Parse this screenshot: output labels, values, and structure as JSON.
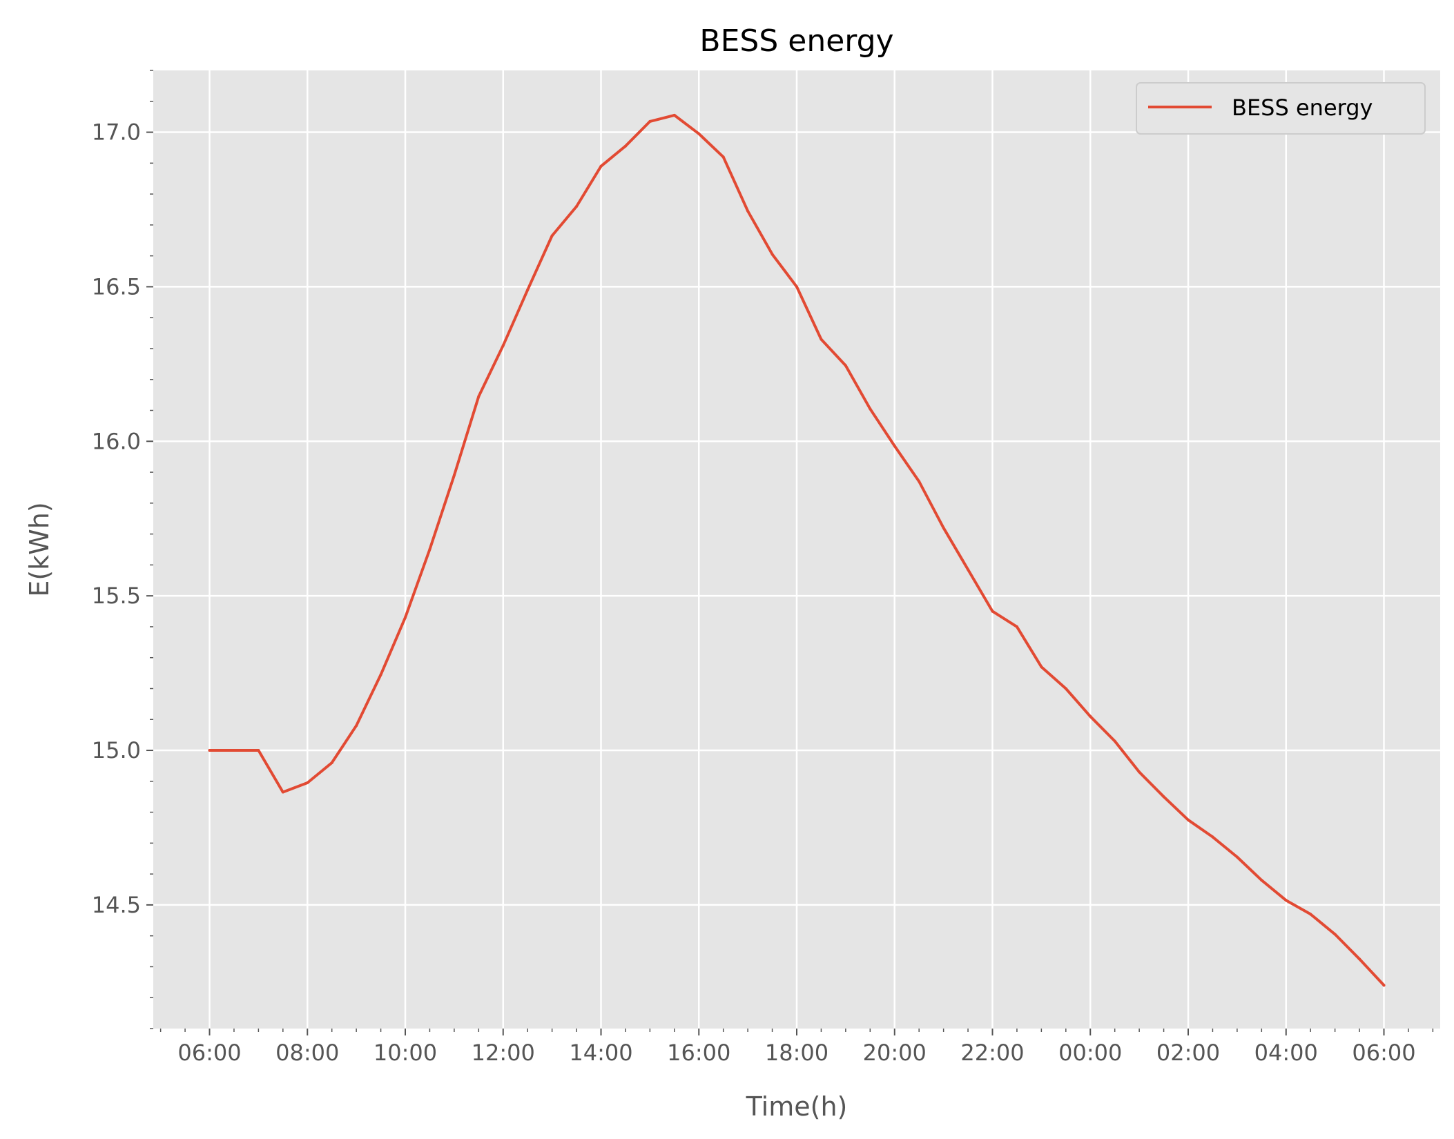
{
  "chart_data": {
    "type": "line",
    "title": "BESS energy",
    "xlabel": "Time(h)",
    "ylabel": "E(kWh)",
    "x_ticks": [
      "06:00",
      "08:00",
      "10:00",
      "12:00",
      "14:00",
      "16:00",
      "18:00",
      "20:00",
      "22:00",
      "00:00",
      "02:00",
      "04:00",
      "06:00"
    ],
    "x_tick_hours": [
      0,
      2,
      4,
      6,
      8,
      10,
      12,
      14,
      16,
      18,
      20,
      22,
      24
    ],
    "y_ticks": [
      "14.5",
      "15.0",
      "15.5",
      "16.0",
      "16.5",
      "17.0"
    ],
    "y_tick_values": [
      14.5,
      15.0,
      15.5,
      16.0,
      16.5,
      17.0
    ],
    "xlim": [
      -1.15,
      25.15
    ],
    "ylim": [
      14.1,
      17.2
    ],
    "grid": true,
    "legend": "top-right",
    "series": [
      {
        "name": "BESS energy",
        "color": "#e24a33",
        "x": [
          0,
          0.5,
          1,
          1.5,
          2,
          2.5,
          3,
          3.5,
          4,
          4.5,
          5,
          5.5,
          6,
          6.5,
          7,
          7.5,
          8,
          8.5,
          9,
          9.5,
          10,
          10.5,
          11,
          11.5,
          12,
          12.5,
          13,
          13.5,
          14,
          14.5,
          15,
          15.5,
          16,
          16.5,
          17,
          17.5,
          18,
          18.5,
          19,
          19.5,
          20,
          20.5,
          21,
          21.5,
          22,
          22.5,
          23,
          23.5,
          24
        ],
        "values": [
          15.0,
          15.0,
          15.0,
          14.865,
          14.895,
          14.96,
          15.08,
          15.245,
          15.43,
          15.65,
          15.89,
          16.145,
          16.31,
          16.49,
          16.665,
          16.76,
          16.89,
          16.955,
          17.035,
          17.055,
          16.995,
          16.92,
          16.745,
          16.605,
          16.5,
          16.33,
          16.245,
          16.105,
          15.985,
          15.87,
          15.72,
          15.585,
          15.45,
          15.4,
          15.27,
          15.2,
          15.11,
          15.03,
          14.93,
          14.85,
          14.775,
          14.72,
          14.655,
          14.58,
          14.515,
          14.47,
          14.405,
          14.325,
          14.24
        ]
      }
    ]
  }
}
